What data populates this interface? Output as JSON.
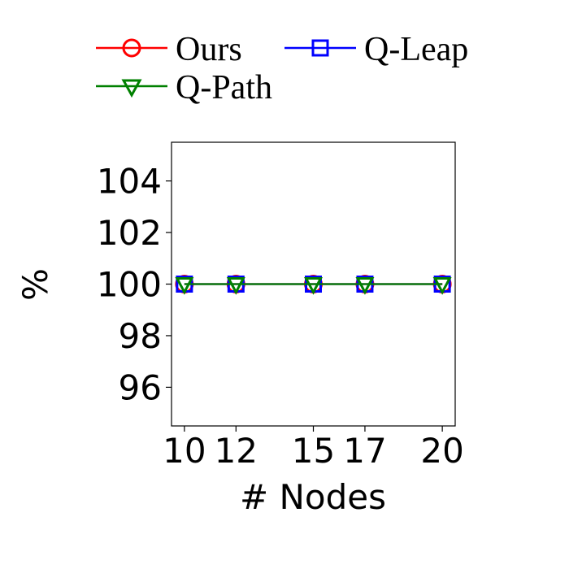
{
  "chart_data": {
    "type": "line",
    "title": "",
    "xlabel": "# Nodes",
    "ylabel": "%",
    "x": [
      10,
      12,
      15,
      17,
      20
    ],
    "xticks": [
      "10",
      "12",
      "15",
      "17",
      "20"
    ],
    "yticks": [
      "96",
      "98",
      "100",
      "102",
      "104"
    ],
    "xlim": [
      9.5,
      20.5
    ],
    "ylim": [
      94.5,
      105.5
    ],
    "grid": false,
    "legend_position": "top",
    "series": [
      {
        "name": "Ours",
        "values": [
          100,
          100,
          100,
          100,
          100
        ],
        "color": "#ff0000",
        "marker": "circle"
      },
      {
        "name": "Q-Leap",
        "values": [
          100,
          100,
          100,
          100,
          100
        ],
        "color": "#0000ff",
        "marker": "square"
      },
      {
        "name": "Q-Path",
        "values": [
          100,
          100,
          100,
          100,
          100
        ],
        "color": "#008000",
        "marker": "triangle-down"
      }
    ]
  }
}
